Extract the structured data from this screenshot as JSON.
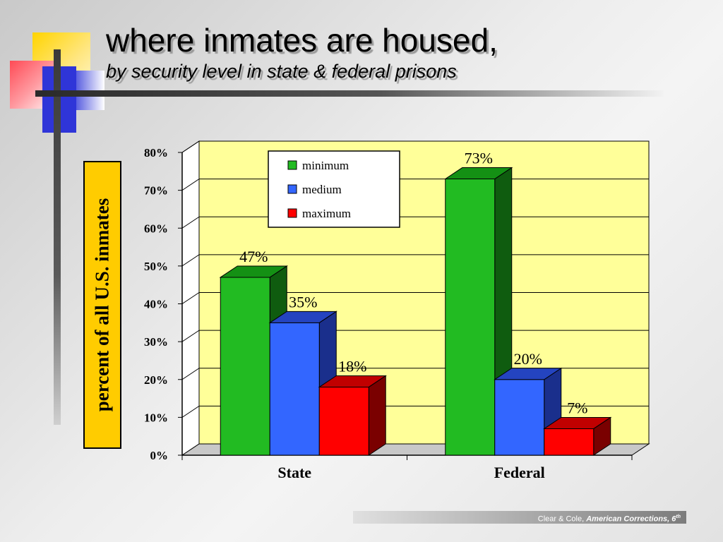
{
  "slide": {
    "title": "where inmates are housed,",
    "subtitle": "by security level in state & federal prisons",
    "ylabel": "percent of all U.S. inmates",
    "footer": {
      "authors": "Clear & Cole, ",
      "book": "American Corrections, 6",
      "sup": "th"
    },
    "colors": {
      "accent_yellow": "#ffcc00",
      "plot_background": "#ffff99"
    }
  },
  "chart_data": {
    "type": "bar",
    "style": "3d-clustered",
    "categories": [
      "State",
      "Federal"
    ],
    "series": [
      {
        "name": "minimum",
        "values": [
          47,
          73
        ],
        "labels": [
          "47%",
          "73%"
        ],
        "color": "#22bb22",
        "side": "#0f5c0f",
        "top": "#149014"
      },
      {
        "name": "medium",
        "values": [
          35,
          20
        ],
        "labels": [
          "35%",
          "20%"
        ],
        "color": "#3366ff",
        "side": "#1a2f8c",
        "top": "#2444c0"
      },
      {
        "name": "maximum",
        "values": [
          18,
          7
        ],
        "labels": [
          "18%",
          "7%"
        ],
        "color": "#ff0000",
        "side": "#7a0000",
        "top": "#c00000"
      }
    ],
    "ylim": [
      0,
      80
    ],
    "yticks": [
      0,
      10,
      20,
      30,
      40,
      50,
      60,
      70,
      80
    ],
    "ytick_labels": [
      "0%",
      "10%",
      "20%",
      "30%",
      "40%",
      "50%",
      "60%",
      "70%",
      "80%"
    ],
    "grid": true,
    "legend": "top-center"
  }
}
